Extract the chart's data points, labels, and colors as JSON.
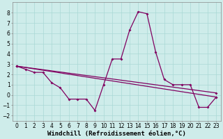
{
  "xlabel": "Windchill (Refroidissement éolien,°C)",
  "background_color": "#ceecea",
  "grid_color": "#aad8d5",
  "line_color": "#800060",
  "xlim": [
    -0.5,
    23.5
  ],
  "ylim": [
    -2.5,
    9.0
  ],
  "yticks": [
    -2,
    -1,
    0,
    1,
    2,
    3,
    4,
    5,
    6,
    7,
    8
  ],
  "xticks": [
    0,
    1,
    2,
    3,
    4,
    5,
    6,
    7,
    8,
    9,
    10,
    11,
    12,
    13,
    14,
    15,
    16,
    17,
    18,
    19,
    20,
    21,
    22,
    23
  ],
  "series1_x": [
    0,
    1,
    2,
    3,
    4,
    5,
    6,
    7,
    8,
    9,
    10,
    11,
    12,
    13,
    14,
    15,
    16,
    17,
    18,
    19,
    20,
    21,
    22,
    23
  ],
  "series1_y": [
    2.8,
    2.5,
    2.2,
    2.2,
    1.2,
    0.7,
    -0.4,
    -0.4,
    -0.4,
    -1.5,
    1.0,
    3.5,
    3.5,
    6.3,
    8.1,
    7.9,
    4.2,
    1.5,
    1.0,
    1.0,
    1.0,
    -1.2,
    -1.2,
    -0.2
  ],
  "series2_x": [
    0,
    23
  ],
  "series2_y": [
    2.8,
    0.2
  ],
  "series3_x": [
    0,
    23
  ],
  "series3_y": [
    2.8,
    -0.2
  ],
  "marker": "D",
  "markersize": 2.0,
  "linewidth": 0.9,
  "tick_fontsize": 5.5,
  "xlabel_fontsize": 6.5
}
